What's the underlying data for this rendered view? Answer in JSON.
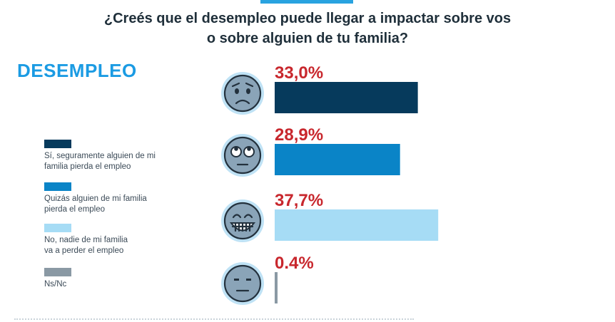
{
  "header": {
    "title_line1": "¿Creés que el desempleo puede llegar a impactar sobre vos",
    "title_line2": "o sobre alguien de tu familia?",
    "brand": "DESEMPLEO"
  },
  "legend": [
    {
      "label": "Sí, seguramente alguien de mi\nfamilia pierda el empleo",
      "color": "#063a5c"
    },
    {
      "label": "Quizás alguien de mi familia\npierda el empleo",
      "color": "#0a84c7"
    },
    {
      "label": "No, nadie de mi familia\nva a perder el empleo",
      "color": "#a6dcf5"
    },
    {
      "label": "Ns/Nc",
      "color": "#8a99a4"
    }
  ],
  "chart_data": {
    "type": "bar",
    "orientation": "horizontal",
    "categories": [
      "Sí, seguramente alguien de mi familia pierda el empleo",
      "Quizás alguien de mi familia pierda el empleo",
      "No, nadie de mi familia va a perder el empleo",
      "Ns/Nc"
    ],
    "values": [
      33.0,
      28.9,
      37.7,
      0.4
    ],
    "value_labels": [
      "33,0%",
      "28,9%",
      "37,7%",
      "0.4%"
    ],
    "colors": [
      "#063a5c",
      "#0a84c7",
      "#a6dcf5",
      "#8a99a4"
    ],
    "label_color": "#c8272d",
    "icons": [
      "worried-face-icon",
      "eye-roll-face-icon",
      "grinning-face-icon",
      "neutral-face-icon"
    ],
    "xlim": [
      0,
      100
    ],
    "grid": false,
    "legend_position": "left"
  }
}
